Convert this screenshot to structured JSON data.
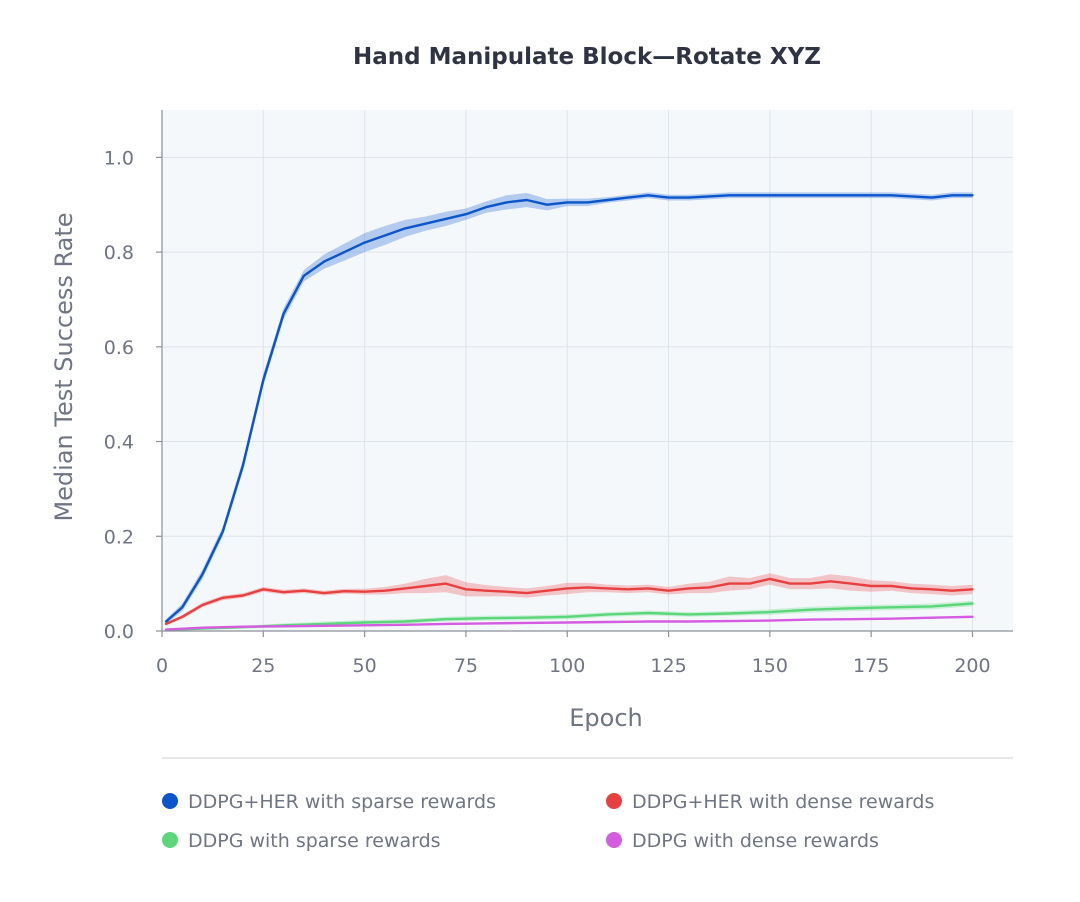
{
  "chart_data": {
    "type": "line",
    "title": "Hand Manipulate Block—Rotate XYZ",
    "xlabel": "Epoch",
    "ylabel": "Median Test Success Rate",
    "xlim": [
      0,
      210
    ],
    "ylim": [
      0,
      1.1
    ],
    "x_ticks": [
      0,
      25,
      50,
      75,
      100,
      125,
      150,
      175,
      200
    ],
    "x_tick_labels": [
      "0",
      "25",
      "50",
      "75",
      "100",
      "125",
      "150",
      "175",
      "200"
    ],
    "y_ticks": [
      0,
      0.2,
      0.4,
      0.6,
      0.8,
      1.0
    ],
    "y_tick_labels": [
      "0.0",
      "0.2",
      "0.4",
      "0.6",
      "0.8",
      "1.0"
    ],
    "grid": true,
    "legend_position": "bottom",
    "series": [
      {
        "name": "DDPG+HER with sparse rewards",
        "color": "#0a55cc",
        "x": [
          1,
          5,
          10,
          15,
          20,
          25,
          30,
          35,
          40,
          45,
          50,
          55,
          60,
          65,
          70,
          75,
          80,
          85,
          90,
          95,
          100,
          105,
          110,
          115,
          120,
          125,
          130,
          140,
          150,
          160,
          170,
          180,
          190,
          195,
          200
        ],
        "values": [
          0.02,
          0.05,
          0.12,
          0.21,
          0.35,
          0.53,
          0.67,
          0.75,
          0.78,
          0.8,
          0.82,
          0.835,
          0.85,
          0.86,
          0.87,
          0.88,
          0.895,
          0.905,
          0.91,
          0.9,
          0.905,
          0.905,
          0.91,
          0.915,
          0.92,
          0.915,
          0.915,
          0.92,
          0.92,
          0.92,
          0.92,
          0.92,
          0.915,
          0.92,
          0.92
        ],
        "band": [
          0.005,
          0.008,
          0.01,
          0.01,
          0.012,
          0.012,
          0.012,
          0.012,
          0.015,
          0.018,
          0.02,
          0.02,
          0.018,
          0.015,
          0.015,
          0.012,
          0.012,
          0.015,
          0.015,
          0.012,
          0.008,
          0.008,
          0.006,
          0.006,
          0.006,
          0.006,
          0.006,
          0.006,
          0.006,
          0.006,
          0.006,
          0.006,
          0.006,
          0.006,
          0.006
        ]
      },
      {
        "name": "DDPG+HER with dense rewards",
        "color": "#e84040",
        "x": [
          1,
          5,
          10,
          15,
          20,
          25,
          30,
          35,
          40,
          45,
          50,
          55,
          60,
          65,
          70,
          75,
          80,
          85,
          90,
          95,
          100,
          105,
          110,
          115,
          120,
          125,
          130,
          135,
          140,
          145,
          150,
          155,
          160,
          165,
          170,
          175,
          180,
          185,
          190,
          195,
          200
        ],
        "values": [
          0.015,
          0.03,
          0.055,
          0.07,
          0.075,
          0.088,
          0.082,
          0.085,
          0.08,
          0.084,
          0.083,
          0.085,
          0.09,
          0.095,
          0.1,
          0.088,
          0.085,
          0.083,
          0.08,
          0.085,
          0.09,
          0.092,
          0.09,
          0.088,
          0.09,
          0.085,
          0.09,
          0.092,
          0.1,
          0.1,
          0.11,
          0.1,
          0.1,
          0.105,
          0.1,
          0.095,
          0.095,
          0.09,
          0.088,
          0.085,
          0.088
        ],
        "band": [
          0.003,
          0.004,
          0.005,
          0.005,
          0.005,
          0.005,
          0.005,
          0.005,
          0.005,
          0.005,
          0.006,
          0.008,
          0.01,
          0.015,
          0.018,
          0.015,
          0.012,
          0.01,
          0.01,
          0.01,
          0.012,
          0.01,
          0.008,
          0.008,
          0.008,
          0.008,
          0.01,
          0.012,
          0.015,
          0.012,
          0.012,
          0.012,
          0.012,
          0.015,
          0.015,
          0.012,
          0.01,
          0.01,
          0.01,
          0.01,
          0.01
        ]
      },
      {
        "name": "DDPG with sparse rewards",
        "color": "#5cd67a",
        "x": [
          1,
          10,
          20,
          30,
          40,
          50,
          60,
          70,
          80,
          90,
          100,
          110,
          120,
          130,
          140,
          150,
          160,
          170,
          180,
          190,
          200
        ],
        "values": [
          0.002,
          0.005,
          0.008,
          0.012,
          0.015,
          0.018,
          0.02,
          0.025,
          0.027,
          0.028,
          0.03,
          0.035,
          0.038,
          0.035,
          0.037,
          0.04,
          0.045,
          0.048,
          0.05,
          0.052,
          0.058
        ],
        "band": [
          0.002,
          0.002,
          0.003,
          0.004,
          0.005,
          0.005,
          0.005,
          0.005,
          0.005,
          0.005,
          0.005,
          0.005,
          0.005,
          0.005,
          0.005,
          0.006,
          0.006,
          0.006,
          0.006,
          0.006,
          0.006
        ]
      },
      {
        "name": "DDPG with dense rewards",
        "color": "#d55ce0",
        "x": [
          1,
          10,
          20,
          30,
          40,
          50,
          60,
          70,
          80,
          90,
          100,
          110,
          120,
          130,
          140,
          150,
          160,
          170,
          180,
          190,
          200
        ],
        "values": [
          0.003,
          0.007,
          0.009,
          0.01,
          0.011,
          0.012,
          0.013,
          0.015,
          0.016,
          0.017,
          0.018,
          0.019,
          0.02,
          0.02,
          0.021,
          0.022,
          0.024,
          0.025,
          0.026,
          0.028,
          0.03
        ],
        "band": [
          0.001,
          0.002,
          0.002,
          0.002,
          0.002,
          0.002,
          0.002,
          0.002,
          0.002,
          0.002,
          0.002,
          0.002,
          0.002,
          0.002,
          0.002,
          0.002,
          0.002,
          0.002,
          0.002,
          0.002,
          0.002
        ]
      }
    ]
  }
}
